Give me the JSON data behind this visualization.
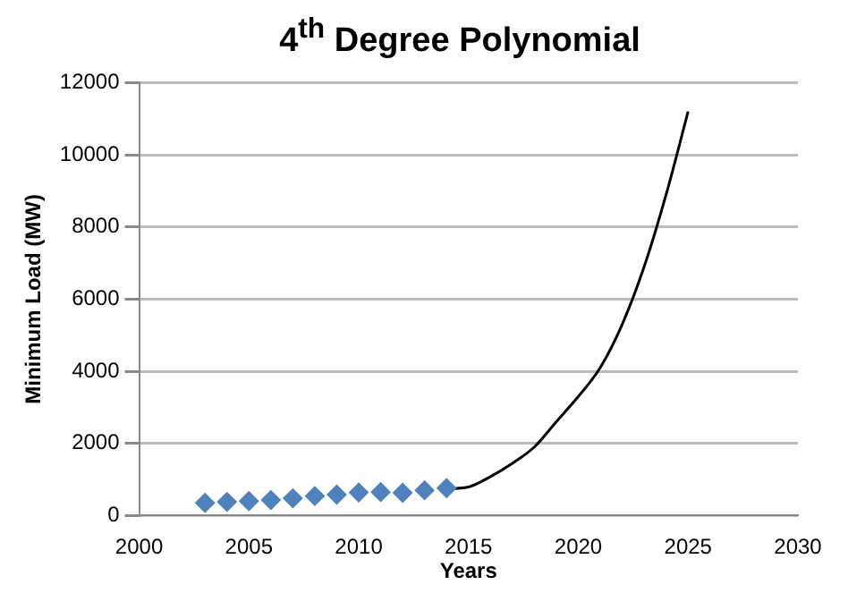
{
  "chart_data": {
    "type": "scatter",
    "title": "4$^{th}$ Degree Polynomial",
    "xlabel": "Years",
    "ylabel": "Minimum Load (MW)",
    "xlim": [
      2000,
      2030
    ],
    "xticks": [
      2000,
      2005,
      2010,
      2015,
      2020,
      2025,
      2030
    ],
    "ylim": [
      0,
      12000
    ],
    "yticks": [
      0,
      2000,
      4000,
      6000,
      8000,
      10000,
      12000
    ],
    "grid": "y",
    "legend": false,
    "series": [
      {
        "type": "scatter",
        "color": "#4f81bd",
        "marker": "diamond",
        "x": [
          2003,
          2004,
          2005,
          2006,
          2007,
          2008,
          2009,
          2010,
          2011,
          2012,
          2013,
          2014
        ],
        "values": [
          350,
          380,
          400,
          430,
          480,
          540,
          580,
          640,
          650,
          630,
          700,
          760
        ]
      },
      {
        "type": "line",
        "color": "#000000",
        "marker": "none",
        "line_style": "solid",
        "x": [
          2014,
          2015,
          2016,
          2017,
          2018,
          2019,
          2020,
          2021,
          2022,
          2023,
          2024,
          2025
        ],
        "values": [
          740,
          790,
          1080,
          1450,
          1900,
          2600,
          3300,
          4100,
          5300,
          6900,
          8900,
          11200
        ]
      }
    ]
  }
}
